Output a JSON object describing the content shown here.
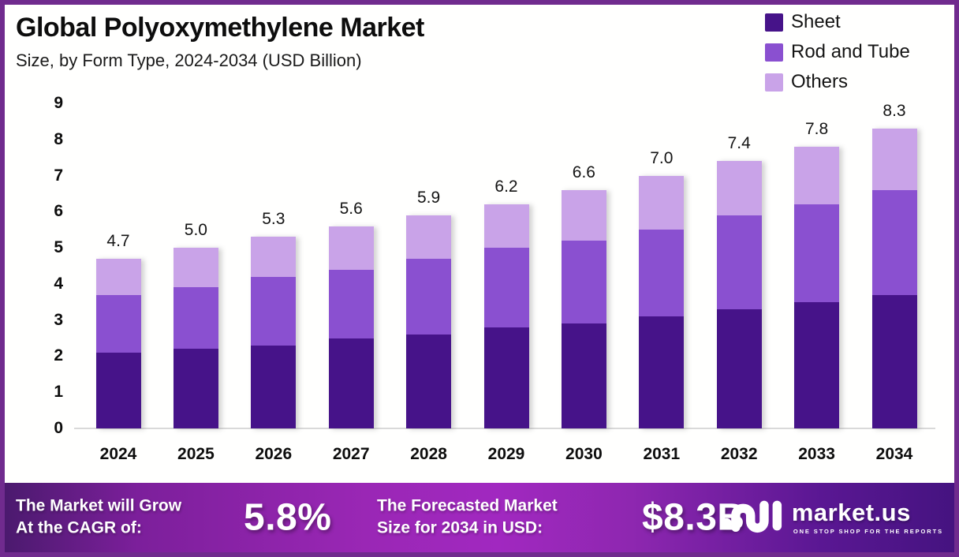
{
  "header": {
    "title": "Global Polyoxymethylene Market",
    "subtitle": "Size, by Form Type, 2024-2034 (USD Billion)"
  },
  "legend": [
    {
      "label": "Sheet",
      "color": "#461389"
    },
    {
      "label": "Rod and Tube",
      "color": "#8a50d0"
    },
    {
      "label": "Others",
      "color": "#c9a3e8"
    }
  ],
  "chart_data": {
    "type": "bar",
    "stacked": true,
    "title": "Global Polyoxymethylene Market Size, by Form Type, 2024-2034 (USD Billion)",
    "categories": [
      "2024",
      "2025",
      "2026",
      "2027",
      "2028",
      "2029",
      "2030",
      "2031",
      "2032",
      "2033",
      "2034"
    ],
    "series": [
      {
        "name": "Sheet",
        "color": "#461389",
        "values": [
          2.1,
          2.2,
          2.3,
          2.5,
          2.6,
          2.8,
          2.9,
          3.1,
          3.3,
          3.5,
          3.7
        ]
      },
      {
        "name": "Rod and Tube",
        "color": "#8a50d0",
        "values": [
          1.6,
          1.7,
          1.9,
          1.9,
          2.1,
          2.2,
          2.3,
          2.4,
          2.6,
          2.7,
          2.9
        ]
      },
      {
        "name": "Others",
        "color": "#c9a3e8",
        "values": [
          1.0,
          1.1,
          1.1,
          1.2,
          1.2,
          1.2,
          1.4,
          1.5,
          1.5,
          1.6,
          1.7
        ]
      }
    ],
    "totals": [
      4.7,
      5.0,
      5.3,
      5.6,
      5.9,
      6.2,
      6.6,
      7.0,
      7.4,
      7.8,
      8.3
    ],
    "xlabel": "",
    "ylabel": "USD Billion",
    "ylim": [
      0,
      9
    ],
    "y_ticks": [
      0,
      1,
      2,
      3,
      4,
      5,
      6,
      7,
      8,
      9
    ],
    "grid": false,
    "legend_position": "top-right"
  },
  "footer": {
    "cagr_label_line1": "The Market will Grow",
    "cagr_label_line2": "At the CAGR of:",
    "cagr_value": "5.8%",
    "forecast_label_line1": "The Forecasted Market",
    "forecast_label_line2": "Size for 2034 in USD:",
    "forecast_value": "$8.3B",
    "brand_name": "market.us",
    "brand_tagline": "ONE STOP SHOP FOR THE REPORTS"
  },
  "colors": {
    "frame_border": "#702b8e",
    "baseline": "#d9d9d9",
    "footer_gradient_start": "#4b1a6e",
    "footer_gradient_mid": "#a128c0",
    "footer_gradient_end": "#451380",
    "text": "#0d0d0d"
  }
}
